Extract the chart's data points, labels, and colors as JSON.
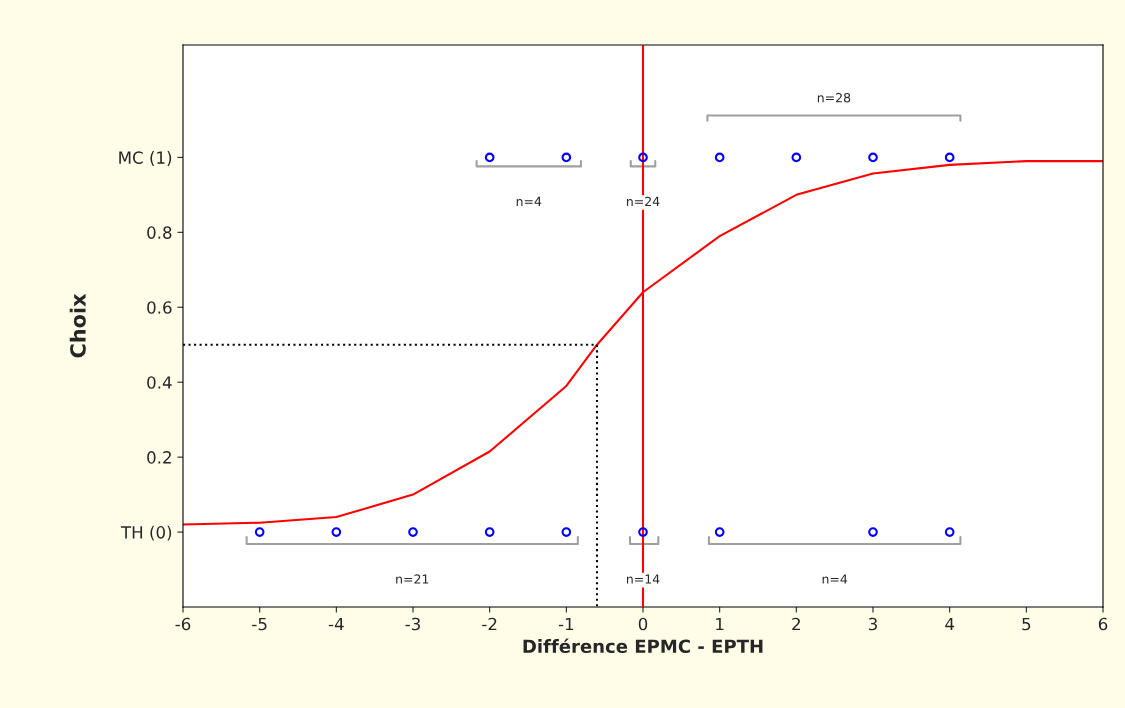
{
  "chart_data": {
    "type": "line",
    "xlabel": "Différence EPMC - EPTH",
    "ylabel": "Choix",
    "xlim": [
      -6,
      6
    ],
    "ylim": [
      -0.2,
      1.3
    ],
    "xticks": [
      -6,
      -5,
      -4,
      -3,
      -2,
      -1,
      0,
      1,
      2,
      3,
      4,
      5,
      6
    ],
    "yticks": [
      {
        "value": 0,
        "label": "TH (0)"
      },
      0.2,
      0.4,
      0.6,
      0.8,
      {
        "value": 1,
        "label": "MC (1)"
      }
    ],
    "grid": false,
    "legend": false,
    "series": [
      {
        "color": "#ff0000",
        "line_style": "solid",
        "marker": "none",
        "x": [
          -6,
          -5,
          -4,
          -3,
          -2,
          -1,
          -0.6,
          0,
          1,
          2,
          3,
          4,
          5,
          6
        ],
        "values": [
          0.02,
          0.025,
          0.04,
          0.1,
          0.215,
          0.39,
          0.5,
          0.64,
          0.79,
          0.9,
          0.957,
          0.98,
          0.99,
          0.99
        ]
      },
      {
        "type": "scatter",
        "color": "#0000ff",
        "marker": "circle",
        "x": [
          -2,
          -1,
          0,
          1,
          2,
          3,
          4
        ],
        "values": [
          1,
          1,
          1,
          1,
          1,
          1,
          1
        ]
      },
      {
        "type": "scatter",
        "color": "#0000ff",
        "marker": "circle",
        "x": [
          -5,
          -4,
          -3,
          -2,
          -1,
          0,
          1,
          3,
          4
        ],
        "values": [
          0,
          0,
          0,
          0,
          0,
          0,
          0,
          0,
          0
        ]
      },
      {
        "type": "line",
        "color": "#000000",
        "line_style": "dotted",
        "marker": "none",
        "x": [
          -6,
          -0.6,
          -0.6
        ],
        "values": [
          0.5,
          0.5,
          -0.2
        ]
      },
      {
        "type": "line",
        "color": "#a0a0a0",
        "line_style": "solid",
        "marker": "none",
        "x": [
          -2.17,
          -2.17,
          -0.81,
          -0.81
        ],
        "values": [
          0.99,
          0.976,
          0.976,
          0.99
        ]
      },
      {
        "type": "line",
        "color": "#a0a0a0",
        "line_style": "solid",
        "marker": "none",
        "x": [
          -0.16,
          -0.16,
          0.16,
          0.16
        ],
        "values": [
          0.99,
          0.976,
          0.976,
          0.99
        ]
      },
      {
        "type": "line",
        "color": "#a0a0a0",
        "line_style": "solid",
        "marker": "none",
        "x": [
          0.84,
          0.84,
          4.14,
          4.14
        ],
        "values": [
          1.098,
          1.112,
          1.112,
          1.098
        ]
      },
      {
        "type": "line",
        "color": "#a0a0a0",
        "line_style": "solid",
        "marker": "none",
        "x": [
          -5.17,
          -5.17,
          -0.85,
          -0.85
        ],
        "values": [
          -0.013,
          -0.032,
          -0.032,
          -0.013
        ]
      },
      {
        "type": "line",
        "color": "#a0a0a0",
        "line_style": "solid",
        "marker": "none",
        "x": [
          -0.17,
          -0.17,
          0.2,
          0.2
        ],
        "values": [
          -0.013,
          -0.032,
          -0.032,
          -0.013
        ]
      },
      {
        "type": "line",
        "color": "#a0a0a0",
        "line_style": "solid",
        "marker": "none",
        "x": [
          0.86,
          0.86,
          4.14,
          4.14
        ],
        "values": [
          -0.013,
          -0.032,
          -0.032,
          -0.013
        ]
      }
    ],
    "ref_lines": [
      {
        "axis": "x",
        "value": 0,
        "color": "#ff0000",
        "line_style": "solid"
      }
    ],
    "annotations": [
      {
        "text": "n=4",
        "x": -1.49,
        "y": 0.976
      },
      {
        "text": "n=24",
        "x": 0,
        "y": 0.976
      },
      {
        "text": "n=28",
        "x": 2.49,
        "y": 1.112
      },
      {
        "text": "n=21",
        "x": -3.01,
        "y": -0.032
      },
      {
        "text": "n=14",
        "x": 0,
        "y": -0.032
      },
      {
        "text": "n=4",
        "x": 2.5,
        "y": -0.032
      }
    ]
  }
}
